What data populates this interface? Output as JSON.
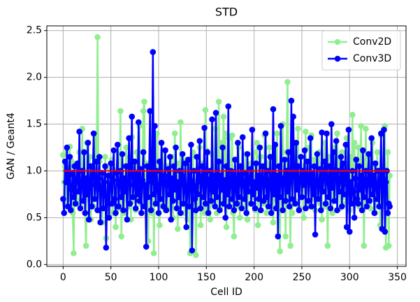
{
  "chart_data": {
    "type": "line",
    "title": "STD",
    "xlabel": "Cell ID",
    "ylabel": "GAN / Geant4",
    "x": [
      0,
      1,
      2,
      3,
      4,
      5,
      6,
      7,
      8,
      9,
      10,
      11,
      12,
      13,
      14,
      15,
      16,
      17,
      18,
      19,
      20,
      21,
      22,
      23,
      24,
      25,
      26,
      27,
      28,
      29,
      30,
      31,
      32,
      33,
      34,
      35,
      36,
      37,
      38,
      39,
      40,
      41,
      42,
      43,
      44,
      45,
      46,
      47,
      48,
      49,
      50,
      51,
      52,
      53,
      54,
      55,
      56,
      57,
      58,
      59,
      60,
      61,
      62,
      63,
      64,
      65,
      66,
      67,
      68,
      69,
      70,
      71,
      72,
      73,
      74,
      75,
      76,
      77,
      78,
      79,
      80,
      81,
      82,
      83,
      84,
      85,
      86,
      87,
      88,
      89,
      90,
      91,
      92,
      93,
      94,
      95,
      96,
      97,
      98,
      99,
      100,
      101,
      102,
      103,
      104,
      105,
      106,
      107,
      108,
      109,
      110,
      111,
      112,
      113,
      114,
      115,
      116,
      117,
      118,
      119,
      120,
      121,
      122,
      123,
      124,
      125,
      126,
      127,
      128,
      129,
      130,
      131,
      132,
      133,
      134,
      135,
      136,
      137,
      138,
      139,
      140,
      141,
      142,
      143,
      144,
      145,
      146,
      147,
      148,
      149,
      150,
      151,
      152,
      153,
      154,
      155,
      156,
      157,
      158,
      159,
      160,
      161,
      162,
      163,
      164,
      165,
      166,
      167,
      168,
      169,
      170,
      171,
      172,
      173,
      174,
      175,
      176,
      177,
      178,
      179,
      180,
      181,
      182,
      183,
      184,
      185,
      186,
      187,
      188,
      189,
      190,
      191,
      192,
      193,
      194,
      195,
      196,
      197,
      198,
      199,
      200,
      201,
      202,
      203,
      204,
      205,
      206,
      207,
      208,
      209,
      210,
      211,
      212,
      213,
      214,
      215,
      216,
      217,
      218,
      219,
      220,
      221,
      222,
      223,
      224,
      225,
      226,
      227,
      228,
      229,
      230,
      231,
      232,
      233,
      234,
      235,
      236,
      237,
      238,
      239,
      240,
      241,
      242,
      243,
      244,
      245,
      246,
      247,
      248,
      249,
      250,
      251,
      252,
      253,
      254,
      255,
      256,
      257,
      258,
      259,
      260,
      261,
      262,
      263,
      264,
      265,
      266,
      267,
      268,
      269,
      270,
      271,
      272,
      273,
      274,
      275,
      276,
      277,
      278,
      279,
      280,
      281,
      282,
      283,
      284,
      285,
      286,
      287,
      288,
      289,
      290,
      291,
      292,
      293,
      294,
      295,
      296,
      297,
      298,
      299,
      300,
      301,
      302,
      303,
      304,
      305,
      306,
      307,
      308,
      309,
      310,
      311,
      312,
      313,
      314,
      315,
      316,
      317,
      318,
      319,
      320,
      321,
      322,
      323,
      324,
      325,
      326,
      327,
      328,
      329,
      330,
      331,
      332,
      333,
      334,
      335,
      336,
      337,
      338,
      339,
      340,
      341,
      342
    ],
    "series": [
      {
        "name": "Conv2D",
        "color": "#90ee90",
        "values": [
          1.17,
          0.88,
          1.05,
          0.62,
          1.22,
          0.95,
          0.7,
          1.26,
          0.85,
          1.1,
          0.55,
          0.12,
          0.98,
          0.75,
          1.05,
          0.68,
          0.9,
          1.2,
          0.62,
          0.85,
          1.45,
          0.78,
          1.0,
          0.55,
          0.2,
          1.3,
          0.92,
          0.7,
          1.15,
          0.48,
          0.85,
          1.05,
          0.62,
          0.95,
          1.38,
          0.72,
          2.43,
          0.88,
          1.1,
          0.58,
          0.98,
          0.45,
          0.8,
          0.6,
          1.15,
          0.28,
          0.92,
          0.7,
          1.02,
          0.65,
          0.78,
          1.12,
          0.55,
          0.88,
          1.0,
          0.4,
          0.95,
          0.72,
          1.18,
          0.6,
          1.64,
          0.3,
          0.85,
          1.05,
          0.55,
          0.92,
          1.25,
          0.7,
          0.98,
          0.62,
          1.15,
          0.48,
          1.36,
          0.8,
          0.68,
          1.05,
          0.58,
          1.2,
          0.88,
          0.72,
          1.48,
          0.65,
          1.0,
          0.78,
          1.64,
          1.74,
          0.62,
          0.9,
          1.08,
          0.25,
          0.85,
          1.02,
          0.72,
          0.55,
          1.18,
          0.12,
          0.95,
          0.68,
          1.4,
          0.8,
          1.1,
          0.42,
          0.88,
          1.02,
          0.65,
          1.22,
          0.75,
          0.58,
          0.98,
          0.85,
          1.05,
          0.6,
          0.92,
          0.78,
          1.15,
          0.5,
          0.88,
          1.4,
          0.7,
          0.95,
          0.38,
          1.08,
          0.62,
          1.52,
          0.85,
          0.72,
          1.0,
          0.55,
          0.9,
          1.12,
          0.48,
          0.82,
          1.05,
          0.12,
          0.95,
          0.68,
          1.2,
          0.58,
          0.88,
          0.1,
          0.75,
          1.02,
          0.62,
          1.25,
          0.42,
          0.9,
          1.08,
          0.7,
          0.55,
          1.65,
          1.22,
          0.85,
          0.6,
          1.0,
          0.48,
          0.92,
          1.18,
          0.72,
          0.65,
          1.45,
          1.05,
          0.55,
          0.88,
          1.74,
          0.78,
          0.62,
          1.3,
          0.95,
          1.58,
          0.7,
          1.4,
          0.4,
          0.85,
          1.02,
          1.35,
          0.68,
          0.9,
          1.38,
          0.55,
          0.3,
          1.12,
          0.75,
          0.95,
          0.62,
          1.25,
          0.5,
          0.88,
          1.05,
          0.7,
          0.92,
          0.6,
          1.18,
          0.78,
          0.48,
          1.0,
          0.85,
          0.65,
          1.08,
          0.72,
          0.95,
          1.2,
          0.58,
          0.88,
          1.3,
          0.42,
          0.95,
          0.7,
          1.15,
          0.8,
          1.02,
          0.65,
          1.38,
          0.9,
          0.55,
          1.08,
          0.75,
          1.25,
          0.62,
          0.98,
          0.85,
          0.45,
          1.12,
          0.7,
          0.92,
          1.4,
          0.6,
          0.88,
          0.14,
          1.05,
          0.78,
          1.5,
          0.65,
          0.95,
          0.3,
          1.2,
          1.95,
          0.72,
          0.88,
          0.2,
          1.1,
          0.55,
          0.95,
          1.3,
          0.68,
          1.02,
          0.8,
          1.45,
          0.6,
          0.92,
          1.15,
          0.72,
          1.05,
          0.5,
          0.88,
          1.42,
          0.78,
          1.0,
          0.62,
          1.25,
          0.85,
          1.38,
          0.7,
          0.95,
          1.12,
          0.58,
          0.9,
          1.05,
          0.75,
          1.2,
          0.65,
          0.92,
          0.48,
          1.08,
          0.8,
          1.3,
          0.62,
          0.98,
          0.2,
          1.15,
          0.72,
          0.88,
          1.02,
          0.55,
          0.95,
          1.25,
          0.68,
          0.85,
          1.4,
          0.78,
          1.1,
          0.6,
          0.92,
          1.2,
          0.72,
          1.05,
          0.85,
          0.65,
          1.35,
          0.8,
          1.0,
          0.58,
          1.15,
          0.75,
          1.6,
          0.9,
          1.3,
          0.68,
          1.05,
          0.82,
          1.25,
          0.62,
          0.95,
          1.48,
          0.78,
          1.1,
          0.2,
          0.88,
          1.45,
          0.7,
          1.02,
          0.85,
          1.15,
          0.6,
          0.95,
          1.3,
          0.72,
          1.05,
          0.55,
          0.88,
          1.2,
          0.68,
          1.0,
          0.42,
          1.38,
          0.8,
          0.95,
          0.62,
          1.48,
          0.18,
          0.85,
          1.2,
          0.2,
          0.95
        ]
      },
      {
        "name": "Conv3D",
        "color": "#0000ff",
        "values": [
          0.7,
          0.55,
          1.1,
          0.88,
          1.25,
          0.62,
          0.95,
          1.15,
          0.58,
          0.8,
          0.98,
          0.72,
          1.05,
          0.65,
          0.9,
          1.08,
          0.78,
          1.42,
          0.6,
          0.85,
          1.0,
          0.68,
          1.2,
          0.55,
          0.92,
          0.75,
          1.3,
          0.48,
          0.88,
          1.05,
          0.62,
          0.95,
          1.4,
          0.7,
          0.85,
          1.1,
          0.58,
          0.92,
          1.15,
          0.45,
          0.8,
          0.98,
          0.6,
          0.88,
          1.05,
          0.18,
          0.72,
          0.95,
          0.5,
          0.85,
          1.08,
          0.65,
          0.9,
          1.22,
          0.7,
          0.55,
          0.98,
          1.28,
          0.62,
          0.85,
          1.0,
          0.72,
          1.18,
          0.58,
          0.92,
          0.78,
          1.05,
          0.48,
          0.88,
          1.35,
          0.65,
          0.95,
          1.58,
          0.72,
          0.85,
          1.1,
          0.6,
          0.98,
          0.75,
          1.52,
          0.68,
          1.02,
          0.55,
          0.9,
          1.2,
          0.62,
          0.85,
          0.19,
          1.05,
          0.72,
          0.95,
          1.64,
          0.58,
          0.88,
          2.27,
          0.75,
          1.48,
          0.65,
          1.0,
          0.82,
          0.55,
          1.1,
          0.7,
          1.3,
          0.88,
          0.62,
          0.95,
          1.22,
          0.58,
          0.85,
          1.02,
          0.75,
          1.15,
          0.48,
          0.92,
          0.68,
          1.05,
          0.8,
          1.25,
          0.6,
          0.88,
          0.72,
          1.0,
          0.55,
          0.95,
          1.18,
          0.65,
          0.85,
          1.08,
          0.4,
          0.78,
          1.12,
          0.62,
          0.9,
          1.28,
          0.15,
          0.85,
          1.0,
          0.7,
          0.58,
          1.15,
          0.75,
          0.95,
          1.32,
          0.6,
          0.88,
          1.05,
          0.72,
          1.46,
          0.65,
          0.92,
          1.2,
          0.55,
          0.85,
          1.0,
          0.68,
          1.55,
          0.78,
          0.95,
          0.62,
          1.62,
          0.72,
          0.88,
          1.1,
          0.58,
          0.95,
          0.8,
          1.25,
          0.65,
          0.9,
          0.5,
          1.05,
          0.75,
          1.69,
          0.62,
          0.88,
          1.0,
          0.7,
          0.95,
          0.58,
          1.12,
          0.8,
          0.65,
          1.3,
          0.72,
          0.92,
          1.05,
          0.6,
          1.36,
          0.85,
          0.7,
          0.98,
          0.55,
          1.18,
          0.78,
          0.9,
          1.02,
          0.65,
          1.44,
          0.75,
          0.88,
          0.6,
          1.08,
          0.82,
          0.95,
          0.7,
          1.25,
          0.58,
          0.92,
          1.05,
          0.68,
          0.85,
          1.4,
          0.72,
          1.0,
          0.62,
          0.9,
          1.15,
          0.55,
          0.8,
          1.66,
          0.75,
          1.28,
          0.6,
          0.95,
          0.3,
          1.05,
          0.72,
          1.48,
          0.85,
          0.58,
          0.92,
          1.12,
          0.68,
          1.0,
          0.78,
          1.2,
          0.62,
          0.88,
          1.75,
          0.7,
          1.58,
          0.95,
          0.65,
          1.3,
          0.8,
          1.05,
          0.58,
          0.92,
          1.15,
          0.72,
          1.0,
          0.85,
          1.22,
          0.6,
          0.95,
          1.1,
          0.68,
          0.88,
          1.35,
          0.62,
          0.98,
          0.75,
          1.05,
          0.32,
          0.9,
          1.18,
          0.7,
          0.85,
          1.02,
          0.58,
          1.41,
          0.78,
          0.95,
          1.1,
          0.65,
          1.4,
          0.88,
          0.72,
          1.05,
          0.6,
          1.5,
          0.82,
          1.2,
          0.68,
          0.95,
          1.32,
          0.58,
          1.0,
          0.78,
          0.9,
          1.15,
          0.62,
          1.08,
          0.75,
          0.98,
          1.28,
          0.4,
          0.85,
          1.44,
          0.35,
          0.88,
          0.65,
          1.0,
          0.78,
          0.5,
          0.92,
          1.12,
          0.7,
          0.65,
          1.05,
          0.8,
          0.95,
          0.58,
          1.22,
          0.72,
          0.88,
          1.0,
          0.62,
          0.9,
          1.18,
          0.68,
          0.85,
          1.35,
          0.75,
          0.95,
          0.55,
          1.08,
          0.82,
          0.7,
          1.0,
          0.62,
          0.9,
          1.4,
          0.38,
          0.85,
          1.44,
          0.35,
          0.88,
          1.0,
          0.55,
          0.65,
          0.62
        ]
      }
    ],
    "hline": {
      "y": 1,
      "x": [
        0,
        342
      ],
      "color": "#ff0000"
    },
    "xlim": [
      -17.1,
      359.1
    ],
    "ylim": [
      -0.02,
      2.55
    ],
    "xticks": [
      0,
      50,
      100,
      150,
      200,
      250,
      300,
      350
    ],
    "yticks": [
      {
        "value": 0,
        "label": "0.0"
      },
      0.5,
      {
        "value": 1,
        "label": "1.0"
      },
      1.5,
      {
        "value": 2,
        "label": "2.0"
      },
      2.5
    ],
    "grid": true,
    "legend": "upper right"
  }
}
